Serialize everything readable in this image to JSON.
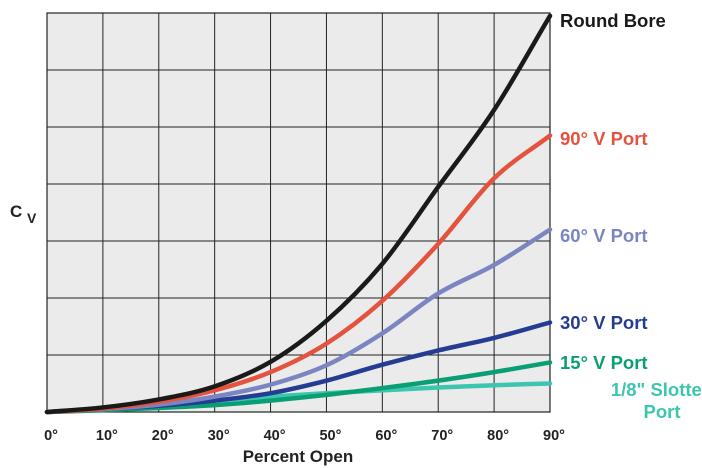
{
  "chart_data": {
    "type": "line",
    "xlabel": "Percent Open",
    "ylabel_main": "C",
    "ylabel_sub": "V",
    "xlim": [
      0,
      90
    ],
    "ylim": [
      0,
      7
    ],
    "grid": true,
    "x_ticks": [
      "0°",
      "10°",
      "20°",
      "30°",
      "40°",
      "50°",
      "60°",
      "70°",
      "80°",
      "90°"
    ],
    "x": [
      0,
      10,
      20,
      30,
      40,
      50,
      60,
      70,
      80,
      90
    ],
    "series": [
      {
        "name": "Round Bore",
        "label_lines": [
          "Round Bore"
        ],
        "color": "#1a1a1a",
        "values": [
          0,
          0.08,
          0.22,
          0.45,
          0.88,
          1.6,
          2.6,
          3.95,
          5.3,
          6.95
        ]
      },
      {
        "name": "90° V Port",
        "label_lines": [
          "90° V Port"
        ],
        "color": "#e3533e",
        "values": [
          0,
          0.06,
          0.18,
          0.38,
          0.7,
          1.2,
          1.95,
          2.95,
          4.1,
          4.85
        ]
      },
      {
        "name": "60° V Port",
        "label_lines": [
          "60° V Port"
        ],
        "color": "#7b85c2",
        "values": [
          0,
          0.05,
          0.13,
          0.27,
          0.48,
          0.82,
          1.38,
          2.08,
          2.58,
          3.2
        ]
      },
      {
        "name": "30° V Port",
        "label_lines": [
          "30° V Port"
        ],
        "color": "#253c93",
        "values": [
          0,
          0.05,
          0.11,
          0.2,
          0.33,
          0.55,
          0.83,
          1.08,
          1.3,
          1.57
        ]
      },
      {
        "name": "15° V Port",
        "label_lines": [
          "15° V Port"
        ],
        "color": "#0a9e74",
        "values": [
          0,
          0.03,
          0.07,
          0.12,
          0.2,
          0.3,
          0.42,
          0.55,
          0.7,
          0.87
        ]
      },
      {
        "name": "1/8\" Slotted Port",
        "label_lines": [
          "1/8\" Slotted",
          "Port"
        ],
        "color": "#3cc6b0",
        "values": [
          0,
          0.06,
          0.13,
          0.2,
          0.27,
          0.33,
          0.38,
          0.43,
          0.47,
          0.5
        ]
      }
    ]
  }
}
